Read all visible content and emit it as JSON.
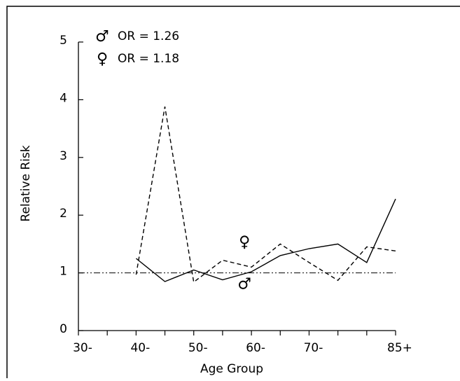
{
  "chart_data": {
    "type": "line",
    "xlabel": "Age Group",
    "ylabel": "Relative Risk",
    "xlim": [
      30,
      85
    ],
    "ylim": [
      0,
      5
    ],
    "x_ticks": [
      {
        "value": 30,
        "label": "30-"
      },
      {
        "value": 35,
        "label": ""
      },
      {
        "value": 40,
        "label": "40-"
      },
      {
        "value": 45,
        "label": ""
      },
      {
        "value": 50,
        "label": "50-"
      },
      {
        "value": 55,
        "label": ""
      },
      {
        "value": 60,
        "label": "60-"
      },
      {
        "value": 65,
        "label": ""
      },
      {
        "value": 70,
        "label": "70-"
      },
      {
        "value": 75,
        "label": ""
      },
      {
        "value": 80,
        "label": ""
      },
      {
        "value": 85,
        "label": "85+"
      }
    ],
    "y_ticks": [
      0,
      1,
      2,
      3,
      4,
      5
    ],
    "reference_line": {
      "y": 1.0,
      "style": "dash-dot-dot"
    },
    "legend": [
      {
        "symbol": "♂",
        "text": "OR = 1.26"
      },
      {
        "symbol": "♀",
        "text": "OR = 1.18"
      }
    ],
    "series": [
      {
        "symbol": "♂",
        "style": "solid",
        "x": [
          40,
          45,
          50,
          55,
          60,
          65,
          70,
          75,
          80,
          85
        ],
        "y": [
          1.25,
          0.85,
          1.05,
          0.88,
          1.02,
          1.3,
          1.42,
          1.5,
          1.18,
          2.28
        ]
      },
      {
        "symbol": "♀",
        "style": "dashed",
        "x": [
          40,
          45,
          50,
          55,
          60,
          65,
          70,
          75,
          80,
          85
        ],
        "y": [
          0.97,
          3.88,
          0.84,
          1.22,
          1.1,
          1.5,
          1.18,
          0.87,
          1.45,
          1.38
        ]
      }
    ],
    "series_markers": [
      {
        "symbol": "♀",
        "x": 58.8,
        "y": 1.45
      },
      {
        "symbol": "♂",
        "x": 58.8,
        "y": 0.72
      }
    ]
  }
}
